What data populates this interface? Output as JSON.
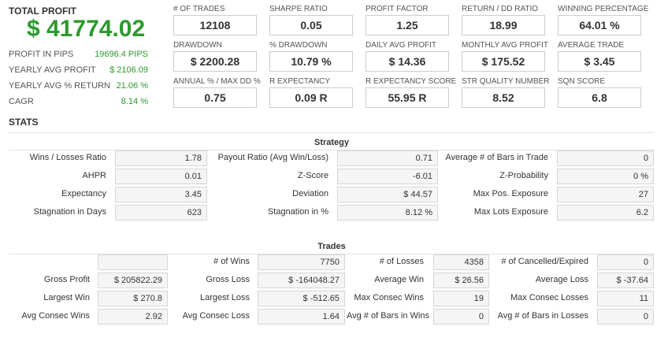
{
  "summary": {
    "title": "TOTAL PROFIT",
    "value": "$ 41774.02",
    "rows": [
      {
        "label": "PROFIT IN PIPS",
        "value": "19696.4 PIPS"
      },
      {
        "label": "YEARLY AVG PROFIT",
        "value": "$ 2106.09"
      },
      {
        "label": "YEARLY AVG % RETURN",
        "value": "21.06 %"
      },
      {
        "label": "CAGR",
        "value": "8.14 %"
      }
    ]
  },
  "metrics": [
    {
      "label": "# OF TRADES",
      "value": "12108"
    },
    {
      "label": "SHARPE RATIO",
      "value": "0.05"
    },
    {
      "label": "PROFIT FACTOR",
      "value": "1.25"
    },
    {
      "label": "RETURN / DD RATIO",
      "value": "18.99"
    },
    {
      "label": "WINNING PERCENTAGE",
      "value": "64.01 %"
    },
    {
      "label": "DRAWDOWN",
      "value": "$ 2200.28"
    },
    {
      "label": "% DRAWDOWN",
      "value": "10.79 %"
    },
    {
      "label": "DAILY AVG PROFIT",
      "value": "$ 14.36"
    },
    {
      "label": "MONTHLY AVG PROFIT",
      "value": "$ 175.52"
    },
    {
      "label": "AVERAGE TRADE",
      "value": "$ 3.45"
    },
    {
      "label": "ANNUAL % / MAX DD %",
      "value": "0.75"
    },
    {
      "label": "R EXPECTANCY",
      "value": "0.09 R"
    },
    {
      "label": "R EXPECTANCY SCORE",
      "value": "55.95 R"
    },
    {
      "label": "STR QUALITY NUMBER",
      "value": "8.52"
    },
    {
      "label": "SQN SCORE",
      "value": "6.8"
    }
  ],
  "stats_title": "STATS",
  "strategy": {
    "title": "Strategy",
    "rows": [
      [
        {
          "label": "Wins / Losses Ratio",
          "value": "1.78"
        },
        {
          "label": "Payout Ratio (Avg Win/Loss)",
          "value": "0.71"
        },
        {
          "label": "Average # of Bars in Trade",
          "value": "0"
        }
      ],
      [
        {
          "label": "AHPR",
          "value": "0.01"
        },
        {
          "label": "Z-Score",
          "value": "-6.01"
        },
        {
          "label": "Z-Probability",
          "value": "0 %"
        }
      ],
      [
        {
          "label": "Expectancy",
          "value": "3.45"
        },
        {
          "label": "Deviation",
          "value": "$ 44.57"
        },
        {
          "label": "Max Pos. Exposure",
          "value": "27"
        }
      ],
      [
        {
          "label": "Stagnation in Days",
          "value": "623"
        },
        {
          "label": "Stagnation in %",
          "value": "8.12 %"
        },
        {
          "label": "Max Lots Exposure",
          "value": "6.2"
        }
      ]
    ]
  },
  "trades": {
    "title": "Trades",
    "rows": [
      [
        {
          "label": "# of Wins",
          "value": "7750"
        },
        {
          "label": "# of Losses",
          "value": "4358"
        },
        {
          "label": "# of Cancelled/Expired",
          "value": "0"
        }
      ],
      [
        {
          "label": "Gross Profit",
          "value": "$ 205822.29"
        },
        {
          "label": "Gross Loss",
          "value": "$ -164048.27"
        },
        {
          "label": "Average Win",
          "value": "$ 26.56"
        },
        {
          "label": "Average Loss",
          "value": "$ -37.64"
        }
      ],
      [
        {
          "label": "Largest Win",
          "value": "$ 270.8"
        },
        {
          "label": "Largest Loss",
          "value": "$ -512.65"
        },
        {
          "label": "Max Consec Wins",
          "value": "19"
        },
        {
          "label": "Max Consec Losses",
          "value": "11"
        }
      ],
      [
        {
          "label": "Avg Consec Wins",
          "value": "2.92"
        },
        {
          "label": "Avg Consec Loss",
          "value": "1.64"
        },
        {
          "label": "Avg # of Bars in Wins",
          "value": "0"
        },
        {
          "label": "Avg # of Bars in Losses",
          "value": "0"
        }
      ]
    ]
  }
}
